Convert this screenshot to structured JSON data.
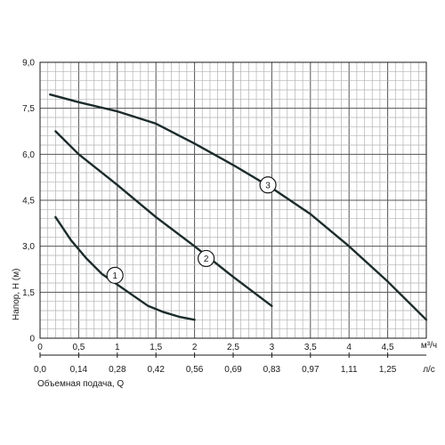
{
  "chart_data": {
    "type": "line",
    "xlim": [
      0,
      5
    ],
    "ylim": [
      0,
      9
    ],
    "grid": true,
    "x_ticks": [
      "0",
      "0,5",
      "1",
      "1,5",
      "2",
      "2,5",
      "3",
      "3,5",
      "4",
      "4,5"
    ],
    "x_unit": "м³/ч",
    "y_ticks": [
      "0",
      "1,5",
      "3,0",
      "4,5",
      "6,0",
      "7,5",
      "9,0"
    ],
    "ylabel": "Напор, H (м)",
    "secondary_x_ticks": [
      "0,0",
      "0,14",
      "0,28",
      "0,42",
      "0,56",
      "0,69",
      "0,83",
      "0,97",
      "1,11",
      "1,25"
    ],
    "secondary_x_unit": "л/с",
    "xlabel": "Объемная подача, Q",
    "series": [
      {
        "name": "1",
        "x": [
          0.2,
          0.4,
          0.6,
          0.8,
          1.0,
          1.2,
          1.4,
          1.6,
          1.8,
          2.0
        ],
        "y": [
          3.95,
          3.2,
          2.6,
          2.1,
          1.75,
          1.4,
          1.05,
          0.85,
          0.7,
          0.6
        ]
      },
      {
        "name": "2",
        "x": [
          0.2,
          0.5,
          1.0,
          1.5,
          2.0,
          2.5,
          3.0
        ],
        "y": [
          6.75,
          6.0,
          5.0,
          3.95,
          3.0,
          2.0,
          1.05
        ]
      },
      {
        "name": "3",
        "x": [
          0.13,
          0.5,
          1.0,
          1.5,
          2.0,
          2.5,
          3.0,
          3.5,
          4.0,
          4.5,
          5.0
        ],
        "y": [
          7.95,
          7.7,
          7.4,
          7.0,
          6.35,
          5.65,
          4.9,
          4.05,
          3.0,
          1.85,
          0.6
        ]
      }
    ],
    "curve_label_points": [
      {
        "name": "1",
        "x": 0.97,
        "y": 2.05
      },
      {
        "name": "2",
        "x": 2.15,
        "y": 2.6
      },
      {
        "name": "3",
        "x": 2.95,
        "y": 5.0
      }
    ]
  }
}
